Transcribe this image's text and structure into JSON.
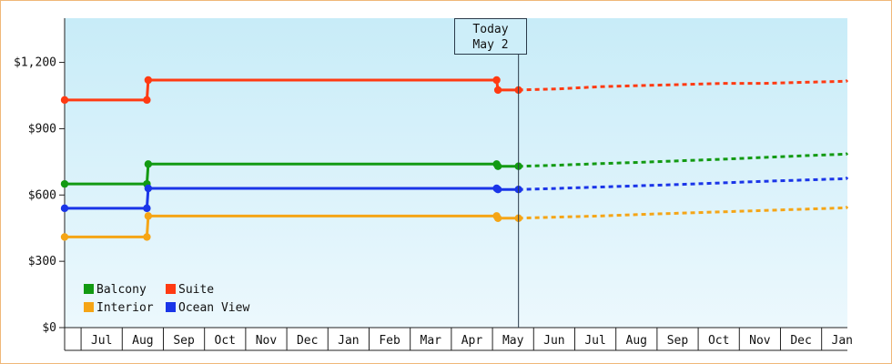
{
  "chart_data": {
    "type": "line",
    "x_start": "Jun 2021",
    "x_end": "Jan 2023",
    "month_labels": [
      "Jul",
      "Aug",
      "Sep",
      "Oct",
      "Nov",
      "Dec",
      "Jan",
      "Feb",
      "Mar",
      "Apr",
      "May",
      "Jun",
      "Jul",
      "Aug",
      "Sep",
      "Oct",
      "Nov",
      "Dec",
      "Jan"
    ],
    "ylim": [
      0,
      1400
    ],
    "y_ticks": [
      0,
      300,
      600,
      900,
      1200
    ],
    "y_tick_labels": [
      "$0",
      "$300",
      "$600",
      "$900",
      "$1,200"
    ],
    "today_marker": {
      "title": "Today",
      "date_label": "May 2",
      "date": "2022-05-02"
    },
    "grid": false,
    "legend_position": "bottom-left",
    "series": [
      {
        "name": "Suite",
        "color": "#ff3a12",
        "points": [
          [
            "2021-06-01",
            1030
          ],
          [
            "2021-08-01",
            1030
          ],
          [
            "2021-08-02",
            1120
          ],
          [
            "2022-04-16",
            1120
          ],
          [
            "2022-04-17",
            1075
          ],
          [
            "2022-05-02",
            1075
          ]
        ],
        "forecast": [
          [
            "2022-05-02",
            1075
          ],
          [
            "2022-06-01",
            1080
          ],
          [
            "2022-07-01",
            1090
          ],
          [
            "2022-08-01",
            1095
          ],
          [
            "2022-09-01",
            1100
          ],
          [
            "2022-10-01",
            1105
          ],
          [
            "2022-11-01",
            1105
          ],
          [
            "2022-12-01",
            1110
          ],
          [
            "2023-01-01",
            1115
          ],
          [
            "2023-02-01",
            1120
          ]
        ]
      },
      {
        "name": "Balcony",
        "color": "#129a12",
        "points": [
          [
            "2021-06-01",
            650
          ],
          [
            "2021-08-01",
            650
          ],
          [
            "2021-08-02",
            740
          ],
          [
            "2022-04-16",
            740
          ],
          [
            "2022-04-17",
            730
          ],
          [
            "2022-05-02",
            730
          ]
        ],
        "forecast": [
          [
            "2022-05-02",
            730
          ],
          [
            "2022-06-01",
            735
          ],
          [
            "2022-07-01",
            742
          ],
          [
            "2022-08-01",
            748
          ],
          [
            "2022-09-01",
            755
          ],
          [
            "2022-10-01",
            762
          ],
          [
            "2022-11-01",
            770
          ],
          [
            "2022-12-01",
            778
          ],
          [
            "2023-01-01",
            785
          ],
          [
            "2023-02-01",
            790
          ]
        ]
      },
      {
        "name": "Ocean View",
        "color": "#1a35e8",
        "points": [
          [
            "2021-06-01",
            540
          ],
          [
            "2021-08-01",
            540
          ],
          [
            "2021-08-02",
            630
          ],
          [
            "2022-04-16",
            630
          ],
          [
            "2022-04-17",
            625
          ],
          [
            "2022-05-02",
            625
          ]
        ],
        "forecast": [
          [
            "2022-05-02",
            625
          ],
          [
            "2022-06-01",
            630
          ],
          [
            "2022-07-01",
            636
          ],
          [
            "2022-08-01",
            642
          ],
          [
            "2022-09-01",
            648
          ],
          [
            "2022-10-01",
            655
          ],
          [
            "2022-11-01",
            662
          ],
          [
            "2022-12-01",
            668
          ],
          [
            "2023-01-01",
            674
          ],
          [
            "2023-02-01",
            680
          ]
        ]
      },
      {
        "name": "Interior",
        "color": "#f5a516",
        "points": [
          [
            "2021-06-01",
            410
          ],
          [
            "2021-08-01",
            410
          ],
          [
            "2021-08-02",
            505
          ],
          [
            "2022-04-16",
            505
          ],
          [
            "2022-04-17",
            495
          ],
          [
            "2022-05-02",
            495
          ]
        ],
        "forecast": [
          [
            "2022-05-02",
            495
          ],
          [
            "2022-06-01",
            500
          ],
          [
            "2022-07-01",
            505
          ],
          [
            "2022-08-01",
            512
          ],
          [
            "2022-09-01",
            518
          ],
          [
            "2022-10-01",
            524
          ],
          [
            "2022-11-01",
            530
          ],
          [
            "2022-12-01",
            536
          ],
          [
            "2023-01-01",
            542
          ],
          [
            "2023-02-01",
            548
          ]
        ]
      }
    ]
  },
  "legend": {
    "items": [
      {
        "name": "Balcony",
        "color": "#129a12"
      },
      {
        "name": "Suite",
        "color": "#ff3a12"
      },
      {
        "name": "Interior",
        "color": "#f5a516"
      },
      {
        "name": "Ocean View",
        "color": "#1a35e8"
      }
    ]
  },
  "colors": {
    "background_top": "#c8ecf8",
    "background_bottom": "#ecf8fd",
    "frame_border": "#f0b878",
    "axis": "#222222"
  }
}
